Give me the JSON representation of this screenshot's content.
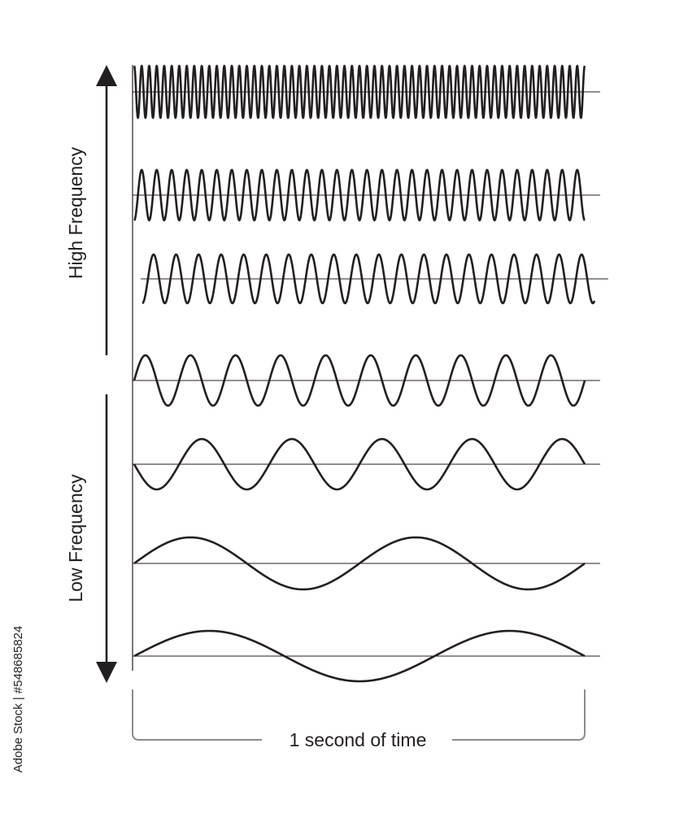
{
  "labels": {
    "high": "High Frequency",
    "low": "Low Frequency",
    "time": "1 second of time"
  },
  "credit": "Adobe Stock | #548685824",
  "colors": {
    "ink": "#231f20",
    "bracket": "#8c8c8c",
    "background": "#ffffff"
  },
  "waves": [
    {
      "cycles_per_second": 60,
      "start_phase_deg": 90
    },
    {
      "cycles_per_second": 30,
      "start_phase_deg": 270
    },
    {
      "cycles_per_second": 20,
      "start_phase_deg": 270
    },
    {
      "cycles_per_second": 10,
      "start_phase_deg": 0
    },
    {
      "cycles_per_second": 5,
      "start_phase_deg": 180
    },
    {
      "cycles_per_second": 2,
      "start_phase_deg": 0
    },
    {
      "cycles_per_second": 1.5,
      "start_phase_deg": 0
    }
  ]
}
